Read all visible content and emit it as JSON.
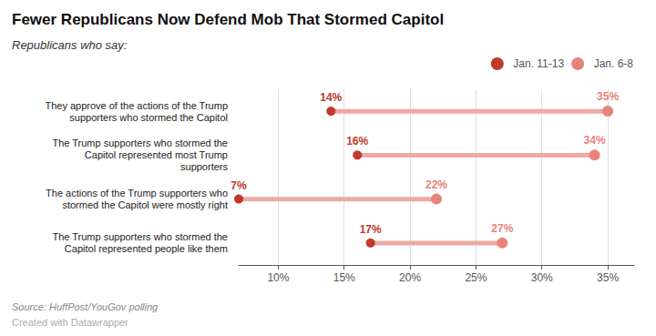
{
  "chart_data": {
    "type": "dumbbell",
    "title": "Fewer Republicans Now Defend Mob That Stormed Capitol",
    "subtitle": "Republicans who say:",
    "source": "Source: HuffPost/YouGov polling",
    "credit": "Created with Datawrapper",
    "categories": [
      "They approve of the actions of the Trump\nsupporters who stormed the Capitol",
      "The Trump supporters who stormed the\nCapitol represented most Trump\nsupporters",
      "The actions of the Trump supporters who\nstormed the Capitol were mostly right",
      "The Trump supporters who stormed the\nCapitol represented people like them"
    ],
    "series": [
      {
        "name": "Jan. 11-13",
        "color": "#c0392b",
        "values": [
          14,
          16,
          7,
          17
        ],
        "value_labels": [
          "14%",
          "16%",
          "7%",
          "17%"
        ]
      },
      {
        "name": "Jan. 6-8",
        "color": "#e8837a",
        "values": [
          35,
          34,
          22,
          27
        ],
        "value_labels": [
          "35%",
          "34%",
          "22%",
          "27%"
        ]
      }
    ],
    "xlim": [
      7,
      37
    ],
    "xticks": [
      {
        "value": 10,
        "label": "10%"
      },
      {
        "value": 15,
        "label": "15%"
      },
      {
        "value": 20,
        "label": "20%"
      },
      {
        "value": 25,
        "label": "25%"
      },
      {
        "value": 30,
        "label": "30%"
      },
      {
        "value": 35,
        "label": "35%"
      }
    ],
    "grid": true,
    "legend": "top-right",
    "data_labels": true
  }
}
